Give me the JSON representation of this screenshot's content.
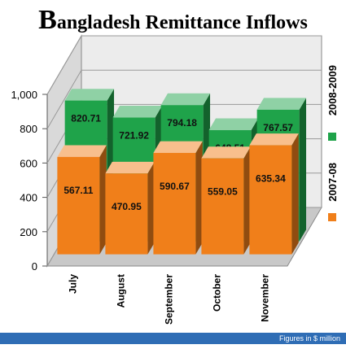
{
  "chart_data": {
    "type": "bar3d",
    "title": "Bangladesh Remittance Inflows",
    "categories": [
      "July",
      "August",
      "September",
      "October",
      "November"
    ],
    "series": [
      {
        "name": "2007-08",
        "color": "#f07f1a",
        "values": [
          567.11,
          470.95,
          590.67,
          559.05,
          635.34
        ]
      },
      {
        "name": "2008-2009",
        "color": "#1fa34a",
        "values": [
          820.71,
          721.92,
          794.18,
          648.51,
          767.57
        ]
      }
    ],
    "ylim": [
      0,
      1000
    ],
    "yticks": [
      0,
      200,
      400,
      600,
      800,
      {
        "value": 1000,
        "label": "1,000"
      }
    ],
    "grid": true,
    "note": "Figures in $ million"
  }
}
